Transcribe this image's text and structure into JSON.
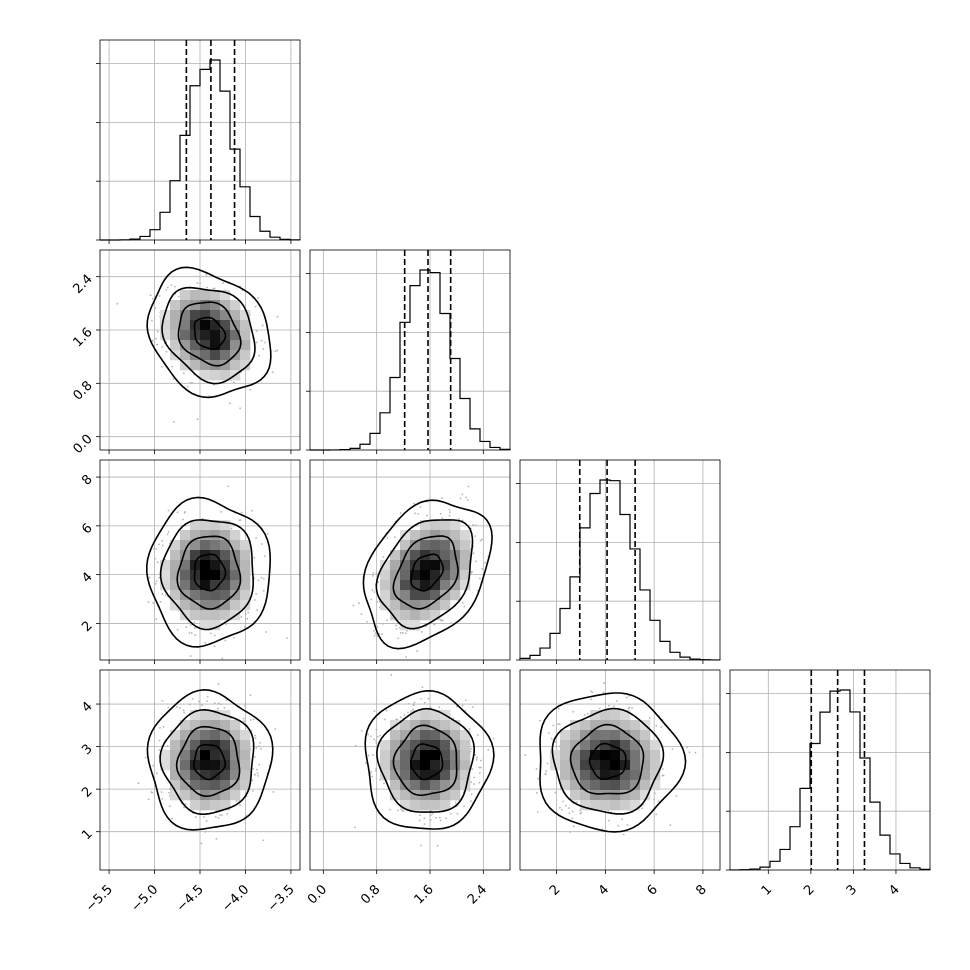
{
  "chart_data": {
    "type": "corner",
    "n_params": 4,
    "grid": true,
    "colors": {
      "hist": "#000000",
      "scatter": "#b5b5b5",
      "fill_dark": "#000000",
      "fill_light": "#ffffff"
    },
    "params": [
      {
        "range": [
          -5.6,
          -3.4
        ],
        "ticks": [
          -5.5,
          -5.0,
          -4.5,
          -4.0,
          -3.5
        ],
        "tick_labels": [
          "−5.5",
          "−5.0",
          "−4.5",
          "−4.0",
          "−3.5"
        ],
        "mean": -4.4,
        "std": 0.25,
        "quantiles": [
          -4.65,
          -4.38,
          -4.12
        ]
      },
      {
        "range": [
          -0.2,
          2.8
        ],
        "ticks": [
          0.0,
          0.8,
          1.6,
          2.4
        ],
        "tick_labels": [
          "0.0",
          "0.8",
          "1.6",
          "2.4"
        ],
        "mean": 1.55,
        "std": 0.35,
        "quantiles": [
          1.22,
          1.57,
          1.91
        ]
      },
      {
        "range": [
          0.5,
          8.7
        ],
        "ticks": [
          2,
          4,
          6,
          8
        ],
        "tick_labels": [
          "2",
          "4",
          "6",
          "8"
        ],
        "mean": 4.1,
        "std": 1.1,
        "quantiles": [
          2.95,
          4.07,
          5.22
        ]
      },
      {
        "range": [
          0.1,
          4.8
        ],
        "ticks": [
          1,
          2,
          3,
          4
        ],
        "tick_labels": [
          "1",
          "2",
          "3",
          "4"
        ],
        "mean": 2.65,
        "std": 0.6,
        "quantiles": [
          2.01,
          2.63,
          3.26
        ]
      }
    ],
    "correlations": [
      [
        1.0,
        -0.2,
        0.0,
        0.0
      ],
      [
        -0.2,
        1.0,
        0.3,
        0.0
      ],
      [
        0.0,
        0.3,
        1.0,
        0.0
      ],
      [
        0.0,
        0.0,
        0.0,
        1.0
      ]
    ],
    "hist_bins": 20,
    "sigma_levels": [
      0.5,
      1.0,
      1.5,
      2.0
    ]
  }
}
